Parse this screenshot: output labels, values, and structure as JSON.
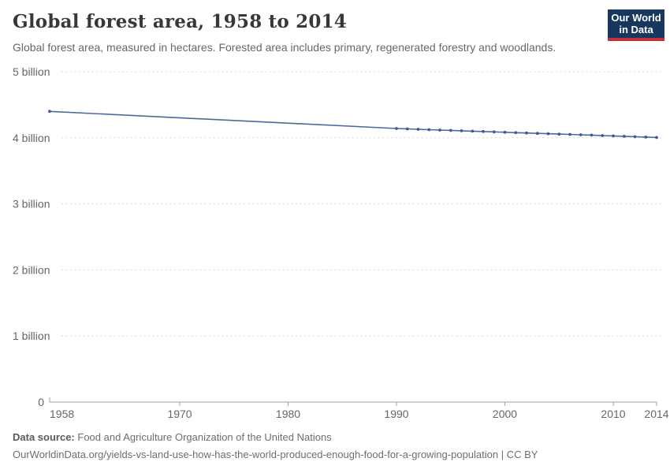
{
  "header": {
    "title": "Global forest area, 1958 to 2014",
    "subtitle": "Global forest area, measured in hectares. Forested area includes primary, regenerated forestry and woodlands.",
    "logo": {
      "line1": "Our World",
      "line2": "in Data"
    }
  },
  "footer": {
    "source_label": "Data source:",
    "source_value": "Food and Agriculture Organization of the United Nations",
    "url_line": "OurWorldinData.org/yields-vs-land-use-how-has-the-world-produced-enough-food-for-a-growing-population | CC BY"
  },
  "colors": {
    "line": "#4C6A9C",
    "marker": "#3d5c94",
    "grid": "#d9d9d9",
    "axis": "#a1a1a1",
    "tick_text": "#666666",
    "logo_navy": "#18375f",
    "logo_red": "#c4303a"
  },
  "chart_data": {
    "type": "line",
    "title": "Global forest area, 1958 to 2014",
    "xlabel": "",
    "ylabel": "",
    "unit": "hectares",
    "legend": "none",
    "grid": true,
    "xlim": [
      1958,
      2014
    ],
    "ylim": [
      0,
      5
    ],
    "x_ticks": [
      1958,
      1970,
      1980,
      1990,
      2000,
      2010,
      2014
    ],
    "y_ticks": [
      {
        "value": 0,
        "label": "0"
      },
      {
        "value": 1,
        "label": "1 billion"
      },
      {
        "value": 2,
        "label": "2 billion"
      },
      {
        "value": 3,
        "label": "3 billion"
      },
      {
        "value": 4,
        "label": "4 billion"
      },
      {
        "value": 5,
        "label": "5 billion"
      }
    ],
    "y_unit_suffix": "billion hectares",
    "series": [
      {
        "name": "Global forest area",
        "points": [
          {
            "year": 1958,
            "value": 4.4
          },
          {
            "year": 1990,
            "value": 4.141
          },
          {
            "year": 1991,
            "value": 4.135
          },
          {
            "year": 1992,
            "value": 4.129
          },
          {
            "year": 1993,
            "value": 4.123
          },
          {
            "year": 1994,
            "value": 4.117
          },
          {
            "year": 1995,
            "value": 4.112
          },
          {
            "year": 1996,
            "value": 4.106
          },
          {
            "year": 1997,
            "value": 4.1
          },
          {
            "year": 1998,
            "value": 4.095
          },
          {
            "year": 1999,
            "value": 4.089
          },
          {
            "year": 2000,
            "value": 4.084
          },
          {
            "year": 2001,
            "value": 4.078
          },
          {
            "year": 2002,
            "value": 4.073
          },
          {
            "year": 2003,
            "value": 4.067
          },
          {
            "year": 2004,
            "value": 4.062
          },
          {
            "year": 2005,
            "value": 4.056
          },
          {
            "year": 2006,
            "value": 4.051
          },
          {
            "year": 2007,
            "value": 4.045
          },
          {
            "year": 2008,
            "value": 4.04
          },
          {
            "year": 2009,
            "value": 4.034
          },
          {
            "year": 2010,
            "value": 4.029
          },
          {
            "year": 2011,
            "value": 4.023
          },
          {
            "year": 2012,
            "value": 4.017
          },
          {
            "year": 2013,
            "value": 4.011
          },
          {
            "year": 2014,
            "value": 4.005
          }
        ]
      }
    ]
  }
}
